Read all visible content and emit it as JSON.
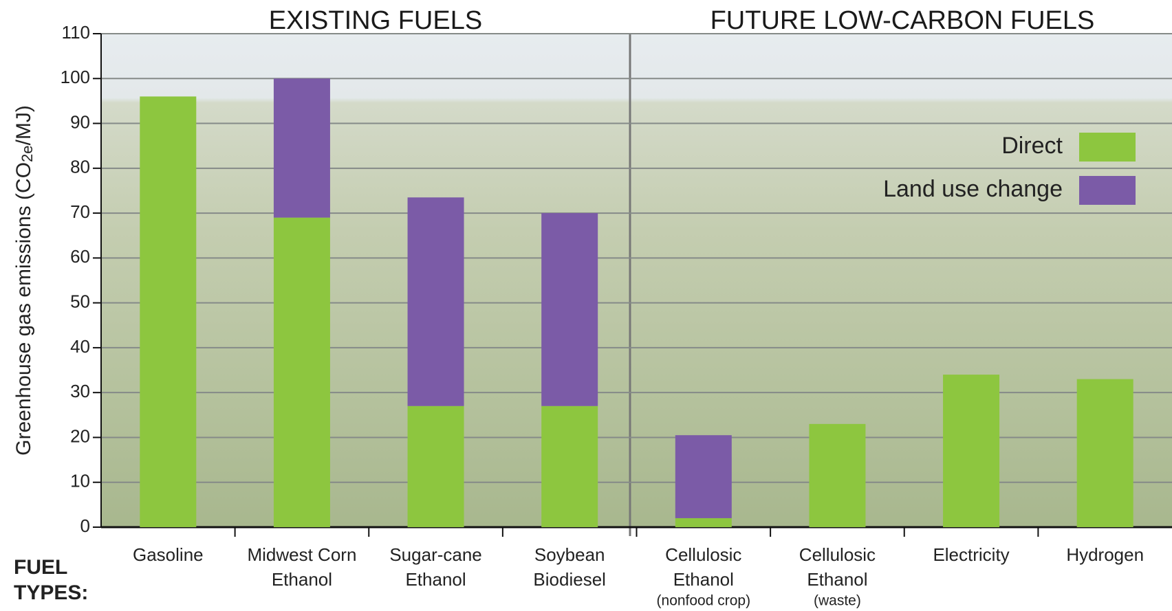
{
  "chart_data": {
    "type": "stacked-bar",
    "y_label_parts": [
      "Greenhouse gas emissions (CO",
      "2e",
      "/MJ)"
    ],
    "x_label_lines": [
      "FUEL",
      "TYPES:"
    ],
    "group_titles": [
      "EXISTING FUELS",
      "FUTURE LOW-CARBON FUELS"
    ],
    "categories": [
      [
        "Gasoline"
      ],
      [
        "Midwest Corn",
        "Ethanol"
      ],
      [
        "Sugar-cane",
        "Ethanol"
      ],
      [
        "Soybean",
        "Biodiesel"
      ],
      [
        "Cellulosic",
        "Ethanol"
      ],
      [
        "Cellulosic",
        "Ethanol"
      ],
      [
        "Electricity"
      ],
      [
        "Hydrogen"
      ]
    ],
    "category_notes": [
      null,
      null,
      null,
      null,
      "(nonfood crop)",
      "(waste)",
      null,
      null
    ],
    "series": [
      {
        "name": "Direct",
        "color": "#8dc63f",
        "values": [
          96,
          69,
          27,
          27,
          2,
          23,
          34,
          33
        ]
      },
      {
        "name": "Land use change",
        "color": "#7b5ba7",
        "values": [
          0,
          31,
          46.5,
          43,
          18.5,
          0,
          0,
          0
        ]
      }
    ],
    "ylim": [
      0,
      110
    ],
    "yticks": [
      0,
      10,
      20,
      30,
      40,
      50,
      60,
      70,
      80,
      90,
      100,
      110
    ],
    "grid": true,
    "legend": "upper right"
  }
}
